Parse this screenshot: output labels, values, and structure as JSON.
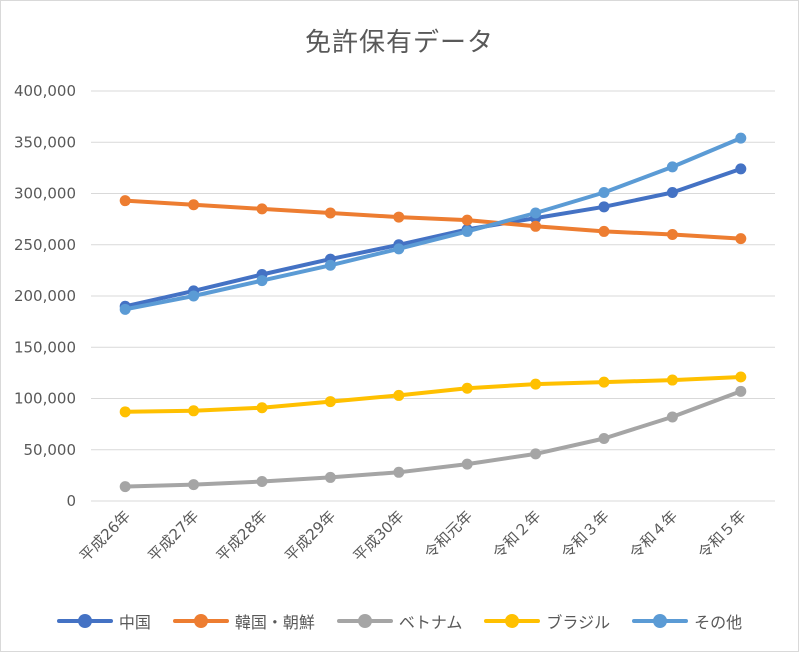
{
  "chart_data": {
    "type": "line",
    "title": "免許保有データ",
    "categories": [
      "平成26年",
      "平成27年",
      "平成28年",
      "平成29年",
      "平成30年",
      "令和元年",
      "令和２年",
      "令和３年",
      "令和４年",
      "令和５年"
    ],
    "y_ticks": [
      "0",
      "50,000",
      "100,000",
      "150,000",
      "200,000",
      "250,000",
      "300,000",
      "350,000",
      "400,000"
    ],
    "ylim": [
      0,
      400000
    ],
    "grid": true,
    "legend_position": "bottom",
    "series": [
      {
        "name": "中国",
        "color": "#4472c4",
        "values": [
          190000,
          205000,
          221000,
          236000,
          250000,
          265000,
          276000,
          287000,
          301000,
          324000
        ]
      },
      {
        "name": "韓国・朝鮮",
        "color": "#ed7d31",
        "values": [
          293000,
          289000,
          285000,
          281000,
          277000,
          274000,
          268000,
          263000,
          260000,
          256000
        ]
      },
      {
        "name": "ベトナム",
        "color": "#a5a5a5",
        "values": [
          14000,
          16000,
          19000,
          23000,
          28000,
          36000,
          46000,
          61000,
          82000,
          107000
        ]
      },
      {
        "name": "ブラジル",
        "color": "#ffc000",
        "values": [
          87000,
          88000,
          91000,
          97000,
          103000,
          110000,
          114000,
          116000,
          118000,
          121000
        ]
      },
      {
        "name": "その他",
        "color": "#5b9bd5",
        "values": [
          187000,
          200000,
          215000,
          230000,
          246000,
          263000,
          281000,
          301000,
          326000,
          354000
        ]
      }
    ]
  }
}
